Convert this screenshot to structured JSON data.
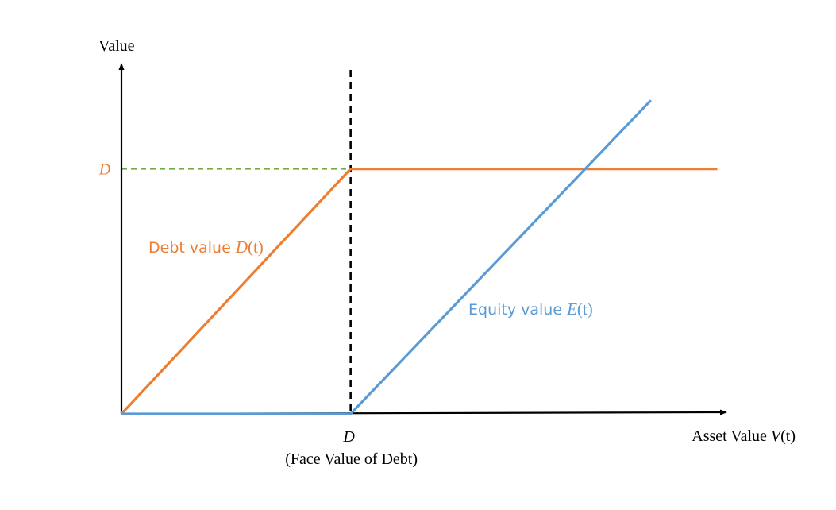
{
  "chart_data": {
    "type": "line",
    "ylabel": "Value",
    "xlabel": {
      "prefix": "Asset Value ",
      "var": "V",
      "arg": "(t)"
    },
    "x_tick": {
      "label": "D",
      "sublabel": "(Face Value of Debt)",
      "value": 1
    },
    "y_tick": {
      "label": "D",
      "value": 1
    },
    "xlim": [
      0,
      2.64
    ],
    "ylim": [
      0,
      1.43
    ],
    "series": [
      {
        "name": {
          "prefix": "Debt value ",
          "var": "D",
          "arg": "(t)"
        },
        "color": "#ED7D31",
        "x": [
          0,
          1,
          2.6
        ],
        "y": [
          0,
          1,
          1
        ]
      },
      {
        "name": {
          "prefix": "Equity value ",
          "var": "E",
          "arg": "(t)"
        },
        "color": "#5B9BD5",
        "x": [
          0,
          1,
          2.31
        ],
        "y": [
          0,
          0,
          1.28
        ]
      }
    ],
    "reference_lines": [
      {
        "kind": "vertical",
        "x": 1,
        "style": "dashed",
        "color": "#000000"
      },
      {
        "kind": "horizontal",
        "y": 1,
        "style": "dashed",
        "color": "#70AD47"
      }
    ],
    "colors": {
      "axis": "#000000",
      "debt": "#ED7D31",
      "equity": "#5B9BD5",
      "face_value_guide": "#70AD47"
    }
  }
}
